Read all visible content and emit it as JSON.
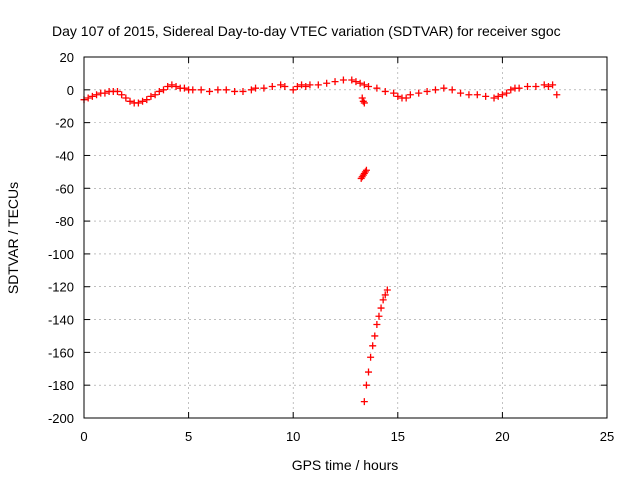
{
  "chart_data": {
    "type": "scatter",
    "title": "Day 107 of 2015, Sidereal Day-to-day VTEC variation (SDTVAR) for receiver sgoc",
    "xlabel": "GPS time / hours",
    "ylabel": "SDTVAR / TECUs",
    "xlim": [
      0,
      25
    ],
    "ylim": [
      -200,
      20
    ],
    "xticks": [
      0,
      5,
      10,
      15,
      20,
      25
    ],
    "yticks": [
      20,
      0,
      -20,
      -40,
      -60,
      -80,
      -100,
      -120,
      -140,
      -160,
      -180,
      -200
    ],
    "grid": true,
    "marker": "plus",
    "color": "#ff0000",
    "series": [
      {
        "x": [
          0.0,
          0.2,
          0.4,
          0.6,
          0.8,
          1.0,
          1.2,
          1.4,
          1.6,
          1.8,
          2.0,
          2.2,
          2.4,
          2.6,
          2.8,
          3.0,
          3.2,
          3.4,
          3.6,
          3.8,
          4.0,
          4.2,
          4.4,
          4.6,
          4.8,
          5.0,
          5.2,
          5.6,
          6.0,
          6.4,
          6.8,
          7.2,
          7.6,
          8.0,
          8.2,
          8.6,
          9.0,
          9.4,
          9.6,
          10.0,
          10.2,
          10.4,
          10.6,
          10.8,
          11.2,
          11.6,
          12.0,
          12.4,
          12.8,
          13.0,
          13.2,
          13.4,
          13.6,
          14.0,
          14.4,
          14.8,
          15.0,
          15.2,
          15.4,
          15.6,
          16.0,
          16.4,
          16.8,
          17.2,
          17.6,
          18.0,
          18.4,
          18.8,
          19.2,
          19.6,
          19.8,
          20.0,
          20.2,
          20.4,
          20.6,
          20.8,
          21.2,
          21.6,
          22.0,
          22.2,
          22.4,
          22.6
        ],
        "y": [
          -6,
          -5,
          -4,
          -3,
          -2,
          -2,
          -1,
          -1,
          -1,
          -3,
          -5,
          -7,
          -8,
          -8,
          -7,
          -6,
          -4,
          -3,
          -1,
          0,
          2,
          3,
          2,
          1,
          1,
          0,
          0,
          0,
          -1,
          0,
          0,
          -1,
          -1,
          0,
          1,
          1,
          2,
          3,
          2,
          0,
          2,
          3,
          2,
          3,
          3,
          4,
          5,
          6,
          6,
          5,
          4,
          3,
          2,
          1,
          -1,
          -2,
          -4,
          -5,
          -5,
          -3,
          -2,
          -1,
          0,
          1,
          0,
          -2,
          -3,
          -3,
          -4,
          -5,
          -4,
          -3,
          -2,
          0,
          1,
          1,
          2,
          2,
          3,
          2,
          3,
          -3
        ]
      },
      {
        "x": [
          13.3,
          13.35,
          13.4
        ],
        "y": [
          -5,
          -7,
          -8
        ]
      },
      {
        "x": [
          13.25,
          13.3,
          13.35,
          13.4,
          13.45,
          13.5
        ],
        "y": [
          -54,
          -53,
          -52,
          -51,
          -50,
          -49
        ]
      },
      {
        "x": [
          13.4,
          13.5,
          13.6,
          13.7,
          13.8,
          13.9,
          14.0,
          14.1,
          14.2,
          14.3,
          14.4,
          14.5
        ],
        "y": [
          -190,
          -180,
          -172,
          -163,
          -156,
          -150,
          -143,
          -138,
          -133,
          -128,
          -125,
          -122
        ]
      }
    ]
  }
}
